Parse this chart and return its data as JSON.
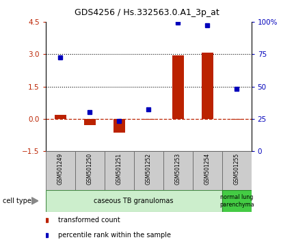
{
  "title": "GDS4256 / Hs.332563.0.A1_3p_at",
  "samples": [
    "GSM501249",
    "GSM501250",
    "GSM501251",
    "GSM501252",
    "GSM501253",
    "GSM501254",
    "GSM501255"
  ],
  "transformed_count": [
    0.18,
    -0.28,
    -0.65,
    -0.05,
    2.93,
    3.07,
    -0.05
  ],
  "percentile_rank": [
    2.85,
    0.3,
    -0.1,
    0.45,
    4.45,
    4.35,
    1.4
  ],
  "left_ylim": [
    -1.5,
    4.5
  ],
  "left_yticks": [
    -1.5,
    0,
    1.5,
    3,
    4.5
  ],
  "right_tick_pos": [
    -1.5,
    0.0,
    1.5,
    3.0,
    4.5
  ],
  "right_tick_labels": [
    "0",
    "25",
    "50",
    "75",
    "100%"
  ],
  "hlines_y": [
    3.0,
    1.5
  ],
  "bar_color": "#bb2200",
  "dot_color": "#0000bb",
  "bar_width": 0.4,
  "cell_group1_label": "caseous TB granulomas",
  "cell_group1_color": "#cceecc",
  "cell_group1_edge": "#448844",
  "cell_group2_label": "normal lung\nparenchyma",
  "cell_group2_color": "#44cc44",
  "cell_group2_edge": "#228822",
  "cell_type_label": "cell type",
  "legend_bar_label": "transformed count",
  "legend_dot_label": "percentile rank within the sample",
  "bg_color": "#ffffff",
  "plot_bg": "#ffffff",
  "sample_box_color": "#cccccc",
  "sample_box_edge": "#666666"
}
